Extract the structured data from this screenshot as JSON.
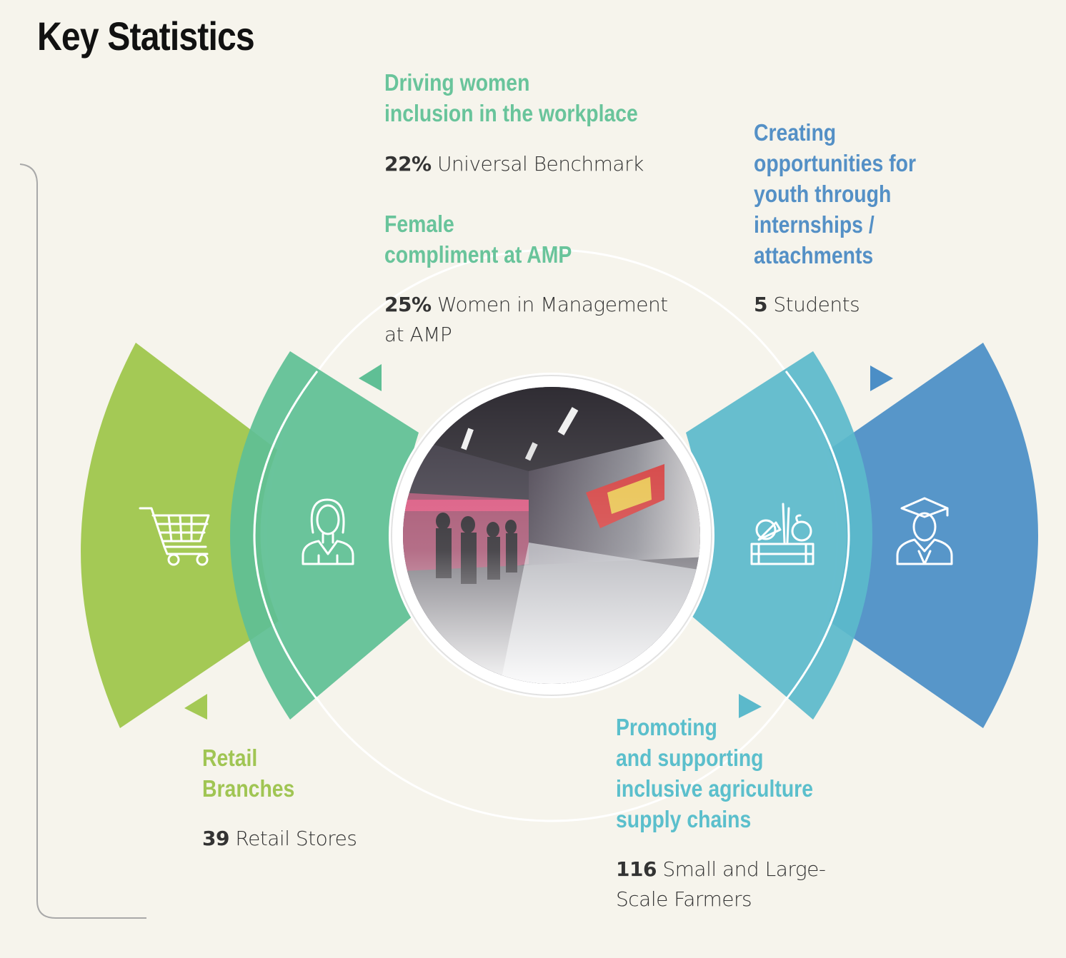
{
  "title": "Key Statistics",
  "colors": {
    "background": "#f6f4ec",
    "lime": "#a4c955",
    "green": "#69c49b",
    "teal": "#65bfcd",
    "blue": "#5796c9",
    "heading_green": "#69c49b",
    "heading_blue": "#5490c6",
    "heading_lime": "#a0c553",
    "heading_teal": "#5bbfcc"
  },
  "icons": {
    "retail": "shopping-cart-icon",
    "women": "woman-icon",
    "agriculture": "vegetable-crate-icon",
    "youth": "graduate-icon"
  },
  "center_image": "supermarket-interior-photo",
  "sections": {
    "women_inclusion": {
      "heading_line1": "Driving women",
      "heading_line2": "inclusion in the workplace",
      "value": "22%",
      "text": "Universal Benchmark"
    },
    "female_compliment": {
      "heading_line1": "Female",
      "heading_line2": "compliment at AMP",
      "value": "25%",
      "text_line1": "Women in Management",
      "text_line2": "at AMP"
    },
    "youth": {
      "heading_lines": [
        "Creating",
        "opportunities for",
        "youth through",
        "internships /",
        "attachments"
      ],
      "value": "5",
      "text": "Students"
    },
    "retail": {
      "heading_line1": "Retail",
      "heading_line2": "Branches",
      "value": "39",
      "text": "Retail Stores"
    },
    "agriculture": {
      "heading_lines": [
        "Promoting",
        "and supporting",
        "inclusive agriculture",
        "supply chains"
      ],
      "value": "116",
      "text_line1": "Small and Large-",
      "text_line2": "Scale Farmers"
    }
  }
}
